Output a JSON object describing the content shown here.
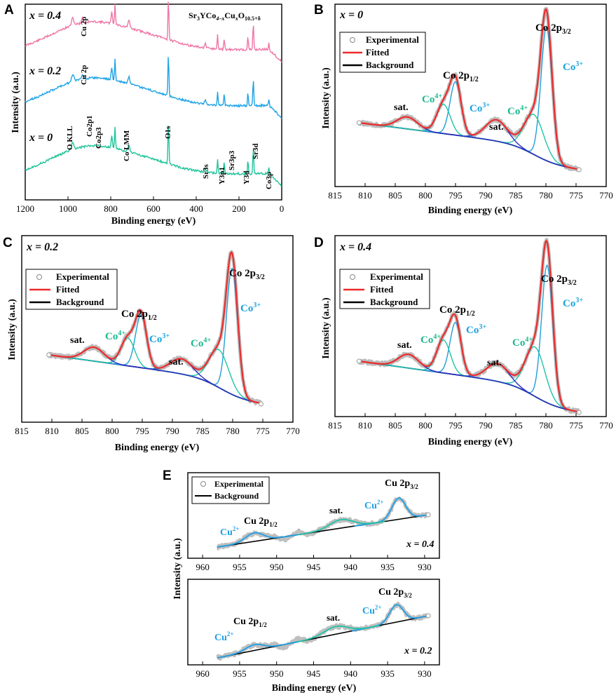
{
  "panel_letters": [
    "A",
    "B",
    "C",
    "D",
    "E"
  ],
  "formula": {
    "base": "Sr",
    "s1": "3",
    "mid": "YCo",
    "s2": "4–x",
    "mid2": "Cu",
    "s3": "x",
    "mid3": "O",
    "s4": "10.5+δ"
  },
  "colors": {
    "pink": "#ef76a6",
    "blue_survey": "#1fa3e6",
    "green_survey": "#1fc49a",
    "fitted": "#ee2b2b",
    "co3": "#1e9fd8",
    "co4": "#1fc4a6",
    "sat": "#2a2bc8",
    "background": "#000000",
    "label_co3": "#1aa2dc",
    "label_co4": "#19b98e",
    "cu_label": "#1e9fe6"
  },
  "chart_data": [
    {
      "panel": "A",
      "type": "line",
      "xlabel": "Binding energy (eV)",
      "ylabel": "Intensity (a.u.)",
      "xlim": [
        1200,
        0
      ],
      "xticks": [
        1200,
        1000,
        800,
        600,
        400,
        200,
        0
      ],
      "series": [
        {
          "name": "x = 0.4",
          "color": "#ef76a6",
          "peaks": [
            "Cu 2p"
          ]
        },
        {
          "name": "x = 0.2",
          "color": "#1fa3e6",
          "peaks": [
            "Cu 2p"
          ]
        },
        {
          "name": "x = 0",
          "color": "#1fc49a",
          "peaks": [
            "O KLL",
            "Co2p1",
            "Co2p3",
            "Co LMM",
            "O1s",
            "Sr3s",
            "Y3p1",
            "Sr3p3",
            "Y3d",
            "Sr3d",
            "Co3p"
          ]
        }
      ],
      "peak_positions_eV": {
        "O KLL": 978,
        "Co2p1": 795,
        "Co2p3": 780,
        "Co LMM": 715,
        "O1s": 530,
        "Sr3s": 358,
        "Y3p1": 300,
        "Sr3p3": 269,
        "Y3d": 158,
        "Sr3d": 133,
        "Co3p": 60,
        "Cu 2p": 933
      }
    },
    {
      "panel": "B",
      "type": "line",
      "title": "x = 0",
      "xlabel": "Binding energy (eV)",
      "ylabel": "Intensity (a.u.)",
      "xlim": [
        815,
        770
      ],
      "xticks": [
        815,
        810,
        805,
        800,
        795,
        790,
        785,
        780,
        775,
        770
      ],
      "legend": [
        "Experimental",
        "Fitted",
        "Background"
      ],
      "annotations": [
        "Co 2p3/2",
        "Co 2p1/2",
        "sat.",
        "Co4+",
        "Co3+",
        "sat.",
        "Co4+",
        "Co3+"
      ],
      "components": [
        {
          "name": "Co3+ 2p3/2",
          "center": 779.9,
          "height": 1.0
        },
        {
          "name": "Co4+ 2p3/2",
          "center": 782.0,
          "height": 0.3
        },
        {
          "name": "sat. 2p3/2",
          "center": 788.2,
          "height": 0.16
        },
        {
          "name": "Co3+ 2p1/2",
          "center": 795.0,
          "height": 0.4
        },
        {
          "name": "Co4+ 2p1/2",
          "center": 797.0,
          "height": 0.22
        },
        {
          "name": "sat. 2p1/2",
          "center": 803.0,
          "height": 0.09
        }
      ],
      "background_range_eV": [
        811,
        774.5
      ]
    },
    {
      "panel": "C",
      "type": "line",
      "title": "x = 0.2",
      "xlabel": "Binding energy (eV)",
      "ylabel": "Intensity (a.u.)",
      "xlim": [
        815,
        770
      ],
      "xticks": [
        815,
        810,
        805,
        800,
        795,
        790,
        785,
        780,
        775,
        770
      ],
      "legend": [
        "Experimental",
        "Fitted",
        "Background"
      ],
      "annotations": [
        "Co 2p3/2",
        "Co 2p1/2",
        "sat.",
        "Co4+",
        "Co3+",
        "sat.",
        "Co4+",
        "Co3+"
      ],
      "components": [
        {
          "name": "Co3+ 2p3/2",
          "center": 780.1,
          "height": 1.0
        },
        {
          "name": "Co4+ 2p3/2",
          "center": 782.3,
          "height": 0.3
        },
        {
          "name": "sat. 2p3/2",
          "center": 788.5,
          "height": 0.12
        },
        {
          "name": "Co3+ 2p1/2",
          "center": 795.2,
          "height": 0.42
        },
        {
          "name": "Co4+ 2p1/2",
          "center": 797.4,
          "height": 0.22
        },
        {
          "name": "sat. 2p1/2",
          "center": 803.0,
          "height": 0.11
        }
      ],
      "background_range_eV": [
        810.5,
        775.3
      ]
    },
    {
      "panel": "D",
      "type": "line",
      "title": "x = 0.4",
      "xlabel": "Binding energy (eV)",
      "ylabel": "Intensity (a.u.)",
      "xlim": [
        815,
        770
      ],
      "xticks": [
        815,
        810,
        805,
        800,
        795,
        790,
        785,
        780,
        775,
        770
      ],
      "legend": [
        "Experimental",
        "Fitted",
        "Background"
      ],
      "annotations": [
        "Co 2p3/2",
        "Co 2p1/2",
        "sat.",
        "Co4+",
        "Co3+",
        "sat.",
        "Co4+",
        "Co3+"
      ],
      "components": [
        {
          "name": "Co3+ 2p3/2",
          "center": 779.8,
          "height": 1.0
        },
        {
          "name": "Co4+ 2p3/2",
          "center": 781.8,
          "height": 0.36
        },
        {
          "name": "sat. 2p3/2",
          "center": 788.0,
          "height": 0.13
        },
        {
          "name": "Co3+ 2p1/2",
          "center": 795.0,
          "height": 0.38
        },
        {
          "name": "Co4+ 2p1/2",
          "center": 797.0,
          "height": 0.24
        },
        {
          "name": "sat. 2p1/2",
          "center": 802.8,
          "height": 0.1
        }
      ],
      "background_range_eV": [
        811,
        774.5
      ]
    },
    {
      "panel": "E",
      "type": "line",
      "xlabel": "Binding energy (eV)",
      "ylabel": "Intensity (a.u.)",
      "xlim": [
        962,
        928
      ],
      "xticks": [
        960,
        955,
        950,
        945,
        940,
        935,
        930
      ],
      "subplots": [
        {
          "title": "x = 0.4",
          "legend": [
            "Experimental",
            "Background"
          ],
          "annotations": [
            "Cu 2p3/2",
            "Cu 2p1/2",
            "sat.",
            "Cu2+",
            "Cu2+"
          ],
          "peaks": [
            {
              "center": 933.5,
              "height": 0.55,
              "color": "#1e9fe6"
            },
            {
              "center": 941.3,
              "height": 0.22,
              "color": "#1fc4a6"
            },
            {
              "center": 953.0,
              "height": 0.22,
              "color": "#1e9fe6"
            }
          ]
        },
        {
          "title": "x = 0.2",
          "annotations": [
            "Cu 2p3/2",
            "Cu 2p1/2",
            "sat.",
            "Cu2+",
            "Cu2+"
          ],
          "peaks": [
            {
              "center": 933.8,
              "height": 0.45,
              "color": "#1e9fe6"
            },
            {
              "center": 942.0,
              "height": 0.2,
              "color": "#1fc4a6"
            },
            {
              "center": 953.0,
              "height": 0.15,
              "color": "#1e9fe6"
            }
          ]
        }
      ]
    }
  ],
  "text": {
    "A_x04": "x = 0.4",
    "A_x02": "x = 0.2",
    "A_x0": "x = 0",
    "cu2p": "Cu 2p",
    "peaks": [
      "O KLL",
      "Co2p1",
      "Co2p3",
      "Co LMM",
      "O1s",
      "Sr3s",
      "Y3p1",
      "Sr3p3",
      "Y3d",
      "Sr3d",
      "Co3p"
    ],
    "xlabel": "Binding energy (eV)",
    "ylabel": "Intensity (a.u.)",
    "legend_exp": "Experimental",
    "legend_fit": "Fitted",
    "legend_bg": "Background",
    "co": "Co 2p",
    "sub32": "3/2",
    "sub12": "1/2",
    "sat": "sat.",
    "co4": "Co",
    "co4sup": "4+",
    "co3": "Co",
    "co3sup": "3+",
    "B_title": "x = 0",
    "C_title": "x = 0.2",
    "D_title": "x = 0.4",
    "cu": "Cu 2p",
    "cu2": "Cu",
    "cu2sup": "2+",
    "E_top_title": "x = 0.4",
    "E_bot_title": "x = 0.2"
  }
}
